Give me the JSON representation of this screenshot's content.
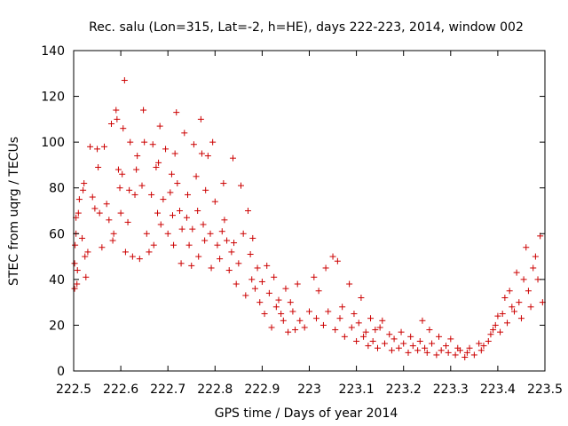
{
  "chart_data": {
    "type": "scatter",
    "title": "Rec. salu (Lon=315, Lat=-2, h=HE), days 222-223, 2014, window 002",
    "xlabel": "GPS time / Days of year 2014",
    "ylabel": "STEC from uqrg / TECUs",
    "xlim": [
      222.5,
      223.5
    ],
    "ylim": [
      0,
      140
    ],
    "xticks": [
      "222.5",
      "222.6",
      "222.7",
      "222.8",
      "222.9",
      "223",
      "223.1",
      "223.2",
      "223.3",
      "223.4",
      "223.5"
    ],
    "yticks": [
      "0",
      "20",
      "40",
      "60",
      "80",
      "100",
      "120",
      "140"
    ],
    "marker": "plus",
    "color": "#cc0000",
    "grid": false,
    "legend": "none",
    "points": [
      [
        222.502,
        36
      ],
      [
        222.502,
        47
      ],
      [
        222.503,
        55
      ],
      [
        222.505,
        60
      ],
      [
        222.505,
        67
      ],
      [
        222.507,
        38
      ],
      [
        222.508,
        44
      ],
      [
        222.51,
        69
      ],
      [
        222.512,
        75
      ],
      [
        222.518,
        58
      ],
      [
        222.52,
        79
      ],
      [
        222.522,
        82
      ],
      [
        222.524,
        50
      ],
      [
        222.526,
        41
      ],
      [
        222.53,
        52
      ],
      [
        222.535,
        98
      ],
      [
        222.54,
        76
      ],
      [
        222.545,
        71
      ],
      [
        222.55,
        97
      ],
      [
        222.552,
        89
      ],
      [
        222.555,
        69
      ],
      [
        222.56,
        54
      ],
      [
        222.565,
        98
      ],
      [
        222.57,
        73
      ],
      [
        222.575,
        66
      ],
      [
        222.58,
        108
      ],
      [
        222.583,
        57
      ],
      [
        222.585,
        60
      ],
      [
        222.59,
        114
      ],
      [
        222.592,
        110
      ],
      [
        222.595,
        88
      ],
      [
        222.598,
        80
      ],
      [
        222.6,
        69
      ],
      [
        222.603,
        86
      ],
      [
        222.605,
        106
      ],
      [
        222.608,
        127
      ],
      [
        222.61,
        52
      ],
      [
        222.615,
        65
      ],
      [
        222.618,
        79
      ],
      [
        222.62,
        100
      ],
      [
        222.625,
        50
      ],
      [
        222.63,
        77
      ],
      [
        222.633,
        88
      ],
      [
        222.635,
        94
      ],
      [
        222.64,
        49
      ],
      [
        222.645,
        81
      ],
      [
        222.648,
        114
      ],
      [
        222.65,
        100
      ],
      [
        222.655,
        60
      ],
      [
        222.66,
        52
      ],
      [
        222.665,
        77
      ],
      [
        222.668,
        99
      ],
      [
        222.67,
        55
      ],
      [
        222.675,
        89
      ],
      [
        222.678,
        69
      ],
      [
        222.68,
        91
      ],
      [
        222.683,
        107
      ],
      [
        222.685,
        64
      ],
      [
        222.69,
        75
      ],
      [
        222.695,
        97
      ],
      [
        222.7,
        60
      ],
      [
        222.705,
        78
      ],
      [
        222.708,
        86
      ],
      [
        222.71,
        68
      ],
      [
        222.712,
        55
      ],
      [
        222.715,
        95
      ],
      [
        222.718,
        113
      ],
      [
        222.72,
        82
      ],
      [
        222.725,
        70
      ],
      [
        222.728,
        47
      ],
      [
        222.73,
        62
      ],
      [
        222.735,
        104
      ],
      [
        222.74,
        67
      ],
      [
        222.742,
        77
      ],
      [
        222.745,
        55
      ],
      [
        222.75,
        46
      ],
      [
        222.752,
        62
      ],
      [
        222.755,
        99
      ],
      [
        222.76,
        85
      ],
      [
        222.763,
        70
      ],
      [
        222.765,
        50
      ],
      [
        222.77,
        110
      ],
      [
        222.772,
        95
      ],
      [
        222.775,
        64
      ],
      [
        222.778,
        57
      ],
      [
        222.78,
        79
      ],
      [
        222.785,
        94
      ],
      [
        222.79,
        60
      ],
      [
        222.792,
        45
      ],
      [
        222.795,
        100
      ],
      [
        222.8,
        74
      ],
      [
        222.805,
        55
      ],
      [
        222.81,
        49
      ],
      [
        222.815,
        61
      ],
      [
        222.818,
        82
      ],
      [
        222.82,
        66
      ],
      [
        222.825,
        57
      ],
      [
        222.83,
        44
      ],
      [
        222.835,
        52
      ],
      [
        222.838,
        93
      ],
      [
        222.84,
        56
      ],
      [
        222.845,
        38
      ],
      [
        222.85,
        47
      ],
      [
        222.855,
        81
      ],
      [
        222.86,
        60
      ],
      [
        222.865,
        33
      ],
      [
        222.87,
        70
      ],
      [
        222.875,
        51
      ],
      [
        222.878,
        40
      ],
      [
        222.88,
        58
      ],
      [
        222.885,
        36
      ],
      [
        222.89,
        45
      ],
      [
        222.895,
        30
      ],
      [
        222.9,
        39
      ],
      [
        222.905,
        25
      ],
      [
        222.91,
        46
      ],
      [
        222.915,
        34
      ],
      [
        222.92,
        19
      ],
      [
        222.925,
        41
      ],
      [
        222.93,
        28
      ],
      [
        222.935,
        31
      ],
      [
        222.94,
        25
      ],
      [
        222.945,
        22
      ],
      [
        222.95,
        36
      ],
      [
        222.955,
        17
      ],
      [
        222.96,
        30
      ],
      [
        222.965,
        26
      ],
      [
        222.97,
        18
      ],
      [
        222.975,
        38
      ],
      [
        222.98,
        22
      ],
      [
        222.99,
        19
      ],
      [
        223.0,
        26
      ],
      [
        223.01,
        41
      ],
      [
        223.015,
        23
      ],
      [
        223.02,
        35
      ],
      [
        223.03,
        20
      ],
      [
        223.035,
        45
      ],
      [
        223.04,
        26
      ],
      [
        223.05,
        50
      ],
      [
        223.055,
        18
      ],
      [
        223.06,
        48
      ],
      [
        223.065,
        23
      ],
      [
        223.07,
        28
      ],
      [
        223.075,
        15
      ],
      [
        223.085,
        38
      ],
      [
        223.09,
        19
      ],
      [
        223.095,
        25
      ],
      [
        223.1,
        13
      ],
      [
        223.105,
        21
      ],
      [
        223.11,
        32
      ],
      [
        223.115,
        15
      ],
      [
        223.12,
        17
      ],
      [
        223.125,
        11
      ],
      [
        223.13,
        23
      ],
      [
        223.135,
        13
      ],
      [
        223.14,
        18
      ],
      [
        223.145,
        10
      ],
      [
        223.15,
        19
      ],
      [
        223.155,
        22
      ],
      [
        223.16,
        12
      ],
      [
        223.17,
        16
      ],
      [
        223.175,
        9
      ],
      [
        223.18,
        14
      ],
      [
        223.19,
        10
      ],
      [
        223.195,
        17
      ],
      [
        223.2,
        12
      ],
      [
        223.21,
        8
      ],
      [
        223.215,
        15
      ],
      [
        223.22,
        11
      ],
      [
        223.23,
        9
      ],
      [
        223.235,
        13
      ],
      [
        223.24,
        22
      ],
      [
        223.245,
        10
      ],
      [
        223.25,
        8
      ],
      [
        223.255,
        18
      ],
      [
        223.26,
        12
      ],
      [
        223.27,
        7
      ],
      [
        223.275,
        15
      ],
      [
        223.28,
        9
      ],
      [
        223.29,
        11
      ],
      [
        223.295,
        8
      ],
      [
        223.3,
        14
      ],
      [
        223.31,
        7
      ],
      [
        223.315,
        10
      ],
      [
        223.32,
        9
      ],
      [
        223.33,
        6
      ],
      [
        223.335,
        8
      ],
      [
        223.34,
        10
      ],
      [
        223.35,
        7
      ],
      [
        223.36,
        12
      ],
      [
        223.365,
        9
      ],
      [
        223.37,
        11
      ],
      [
        223.38,
        13
      ],
      [
        223.385,
        16
      ],
      [
        223.39,
        18
      ],
      [
        223.395,
        20
      ],
      [
        223.4,
        24
      ],
      [
        223.405,
        17
      ],
      [
        223.41,
        25
      ],
      [
        223.415,
        32
      ],
      [
        223.42,
        21
      ],
      [
        223.425,
        35
      ],
      [
        223.43,
        28
      ],
      [
        223.435,
        26
      ],
      [
        223.44,
        43
      ],
      [
        223.445,
        30
      ],
      [
        223.45,
        23
      ],
      [
        223.455,
        40
      ],
      [
        223.46,
        54
      ],
      [
        223.465,
        35
      ],
      [
        223.47,
        28
      ],
      [
        223.475,
        45
      ],
      [
        223.48,
        50
      ],
      [
        223.485,
        40
      ],
      [
        223.49,
        59
      ],
      [
        223.495,
        30
      ]
    ]
  }
}
